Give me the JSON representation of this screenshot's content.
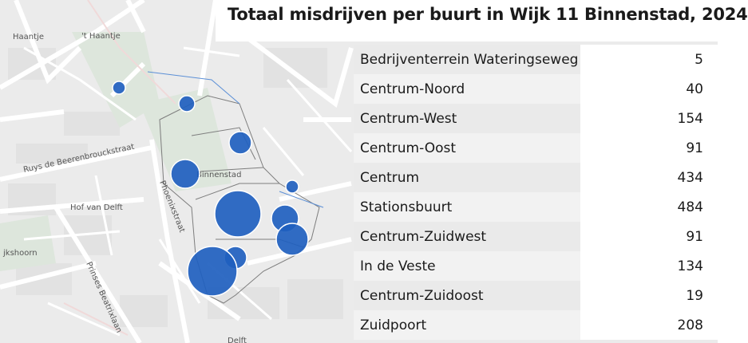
{
  "title": "Totaal misdrijven per buurt in Wijk 11 Binnenstad, 2024",
  "rows": [
    {
      "name": "Bedrijventerrein Wateringseweg",
      "value": "5"
    },
    {
      "name": "Centrum-Noord",
      "value": "40"
    },
    {
      "name": "Centrum-West",
      "value": "154"
    },
    {
      "name": "Centrum-Oost",
      "value": "91"
    },
    {
      "name": "Centrum",
      "value": "434"
    },
    {
      "name": "Stationsbuurt",
      "value": "484"
    },
    {
      "name": "Centrum-Zuidwest",
      "value": "91"
    },
    {
      "name": "In de Veste",
      "value": "134"
    },
    {
      "name": "Centrum-Zuidoost",
      "value": "19"
    },
    {
      "name": "Zuidpoort",
      "value": "208"
    }
  ],
  "map_labels": {
    "haantje": "Haantje",
    "t_haantje": "'t Haantje",
    "ruys": "Ruys de Beerenbrouckstraat",
    "hof": "Hof van Delft",
    "phoenix": "Phoenixstraat",
    "binnenstad": "Binnenstad",
    "prinses": "Prinses Beatrixlaan",
    "jkshoorn": "jkshoorn",
    "delft": "Delft"
  },
  "colors": {
    "bubble": "#1f5fbf"
  }
}
